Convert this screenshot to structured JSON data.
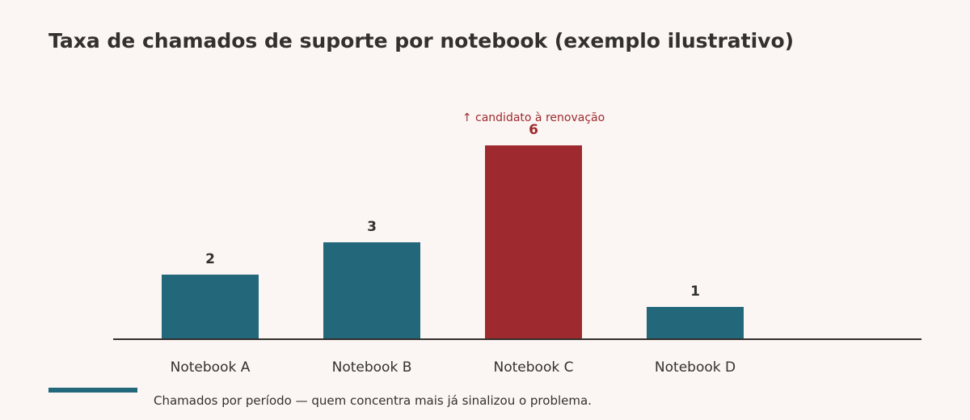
{
  "chart_data": {
    "type": "bar",
    "title": "Taxa de chamados de suporte por notebook (exemplo ilustrativo)",
    "xlabel": "",
    "ylabel": "",
    "categories": [
      "Notebook A",
      "Notebook B",
      "Notebook C",
      "Notebook D"
    ],
    "values": [
      2,
      3,
      6,
      1
    ],
    "highlight_index": 2,
    "annotation": "↑ candidato à renovação",
    "legend_text": "Chamados por período — quem concentra mais já sinalizou o problema.",
    "grid": false,
    "colors": {
      "bar": "#22687a",
      "highlight": "#9e292e",
      "axis": "#33302e",
      "text": "#33302e"
    }
  }
}
